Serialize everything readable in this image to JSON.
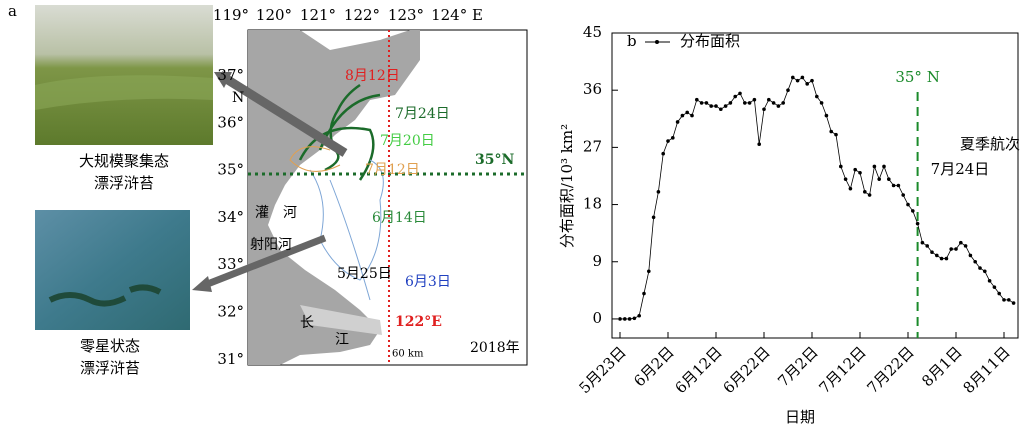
{
  "panel_a": {
    "label": "a",
    "photo_top_caption": [
      "大规模聚集态",
      "漂浮浒苔"
    ],
    "photo_bottom_caption": [
      "零星状态",
      "漂浮浒苔"
    ],
    "lon_labels": [
      "119°",
      "120°",
      "121°",
      "122°",
      "123°",
      "124° E"
    ],
    "lat_labels": [
      "37°",
      "36°",
      "35°",
      "34°",
      "33°",
      "32°",
      "31°"
    ],
    "lat_unit": "N",
    "contour_labels": [
      "8月12日",
      "7月24日",
      "7月20日",
      "7月12日",
      "6月14日",
      "5月25日",
      "6月3日"
    ],
    "line_35": "35°N",
    "line_122": "122°E",
    "year": "2018年",
    "scale": "60 km",
    "place_names": [
      "灌",
      "河",
      "射阳河",
      "长",
      "江"
    ]
  },
  "chart_data": {
    "type": "line",
    "label": "b",
    "x_label": "日期",
    "y_label": "分布面积/10³ km²",
    "categories": [
      "5月23日",
      null,
      null,
      null,
      null,
      null,
      null,
      null,
      null,
      null,
      "6月2日",
      null,
      null,
      null,
      null,
      null,
      null,
      null,
      null,
      null,
      "6月12日",
      null,
      null,
      null,
      null,
      null,
      null,
      null,
      null,
      null,
      "6月22日",
      null,
      null,
      null,
      null,
      null,
      null,
      null,
      null,
      null,
      "7月2日",
      null,
      null,
      null,
      null,
      null,
      null,
      null,
      null,
      null,
      "7月12日",
      null,
      null,
      null,
      null,
      null,
      null,
      null,
      null,
      null,
      "7月22日",
      null,
      null,
      null,
      null,
      null,
      null,
      null,
      null,
      null,
      "8月1日",
      null,
      null,
      null,
      null,
      null,
      null,
      null,
      null,
      null,
      "8月11日",
      null,
      null
    ],
    "series": [
      {
        "name": "分布面积",
        "color": "#000000",
        "values": [
          0,
          0,
          0,
          0.1,
          0.5,
          4,
          7.5,
          16,
          20,
          26,
          28,
          28.5,
          31,
          32,
          32.5,
          32,
          34.5,
          34,
          34,
          33.5,
          33.5,
          33,
          33.5,
          34,
          35,
          35.5,
          34,
          34,
          34.5,
          27.5,
          33,
          34.5,
          34,
          33.5,
          34,
          36,
          38,
          37.5,
          38,
          37,
          37.5,
          35,
          34,
          32,
          29.5,
          29,
          24,
          22,
          20.5,
          23.5,
          23,
          20,
          19.5,
          24,
          22,
          24,
          22,
          21,
          21,
          19.5,
          18,
          17,
          15,
          12,
          11.5,
          10.5,
          10,
          9.5,
          9.5,
          11,
          11,
          12,
          11.5,
          10,
          9,
          8,
          7.5,
          6,
          5,
          4,
          3,
          3,
          2.5
        ]
      }
    ],
    "ylim": [
      -3,
      45
    ],
    "yticks": [
      0,
      9,
      18,
      27,
      36,
      45
    ],
    "reference_line": {
      "category_index": 62,
      "color": "#1a8a2a",
      "label": "35° N"
    },
    "annotation": [
      "夏季航次",
      "7月24日"
    ]
  }
}
